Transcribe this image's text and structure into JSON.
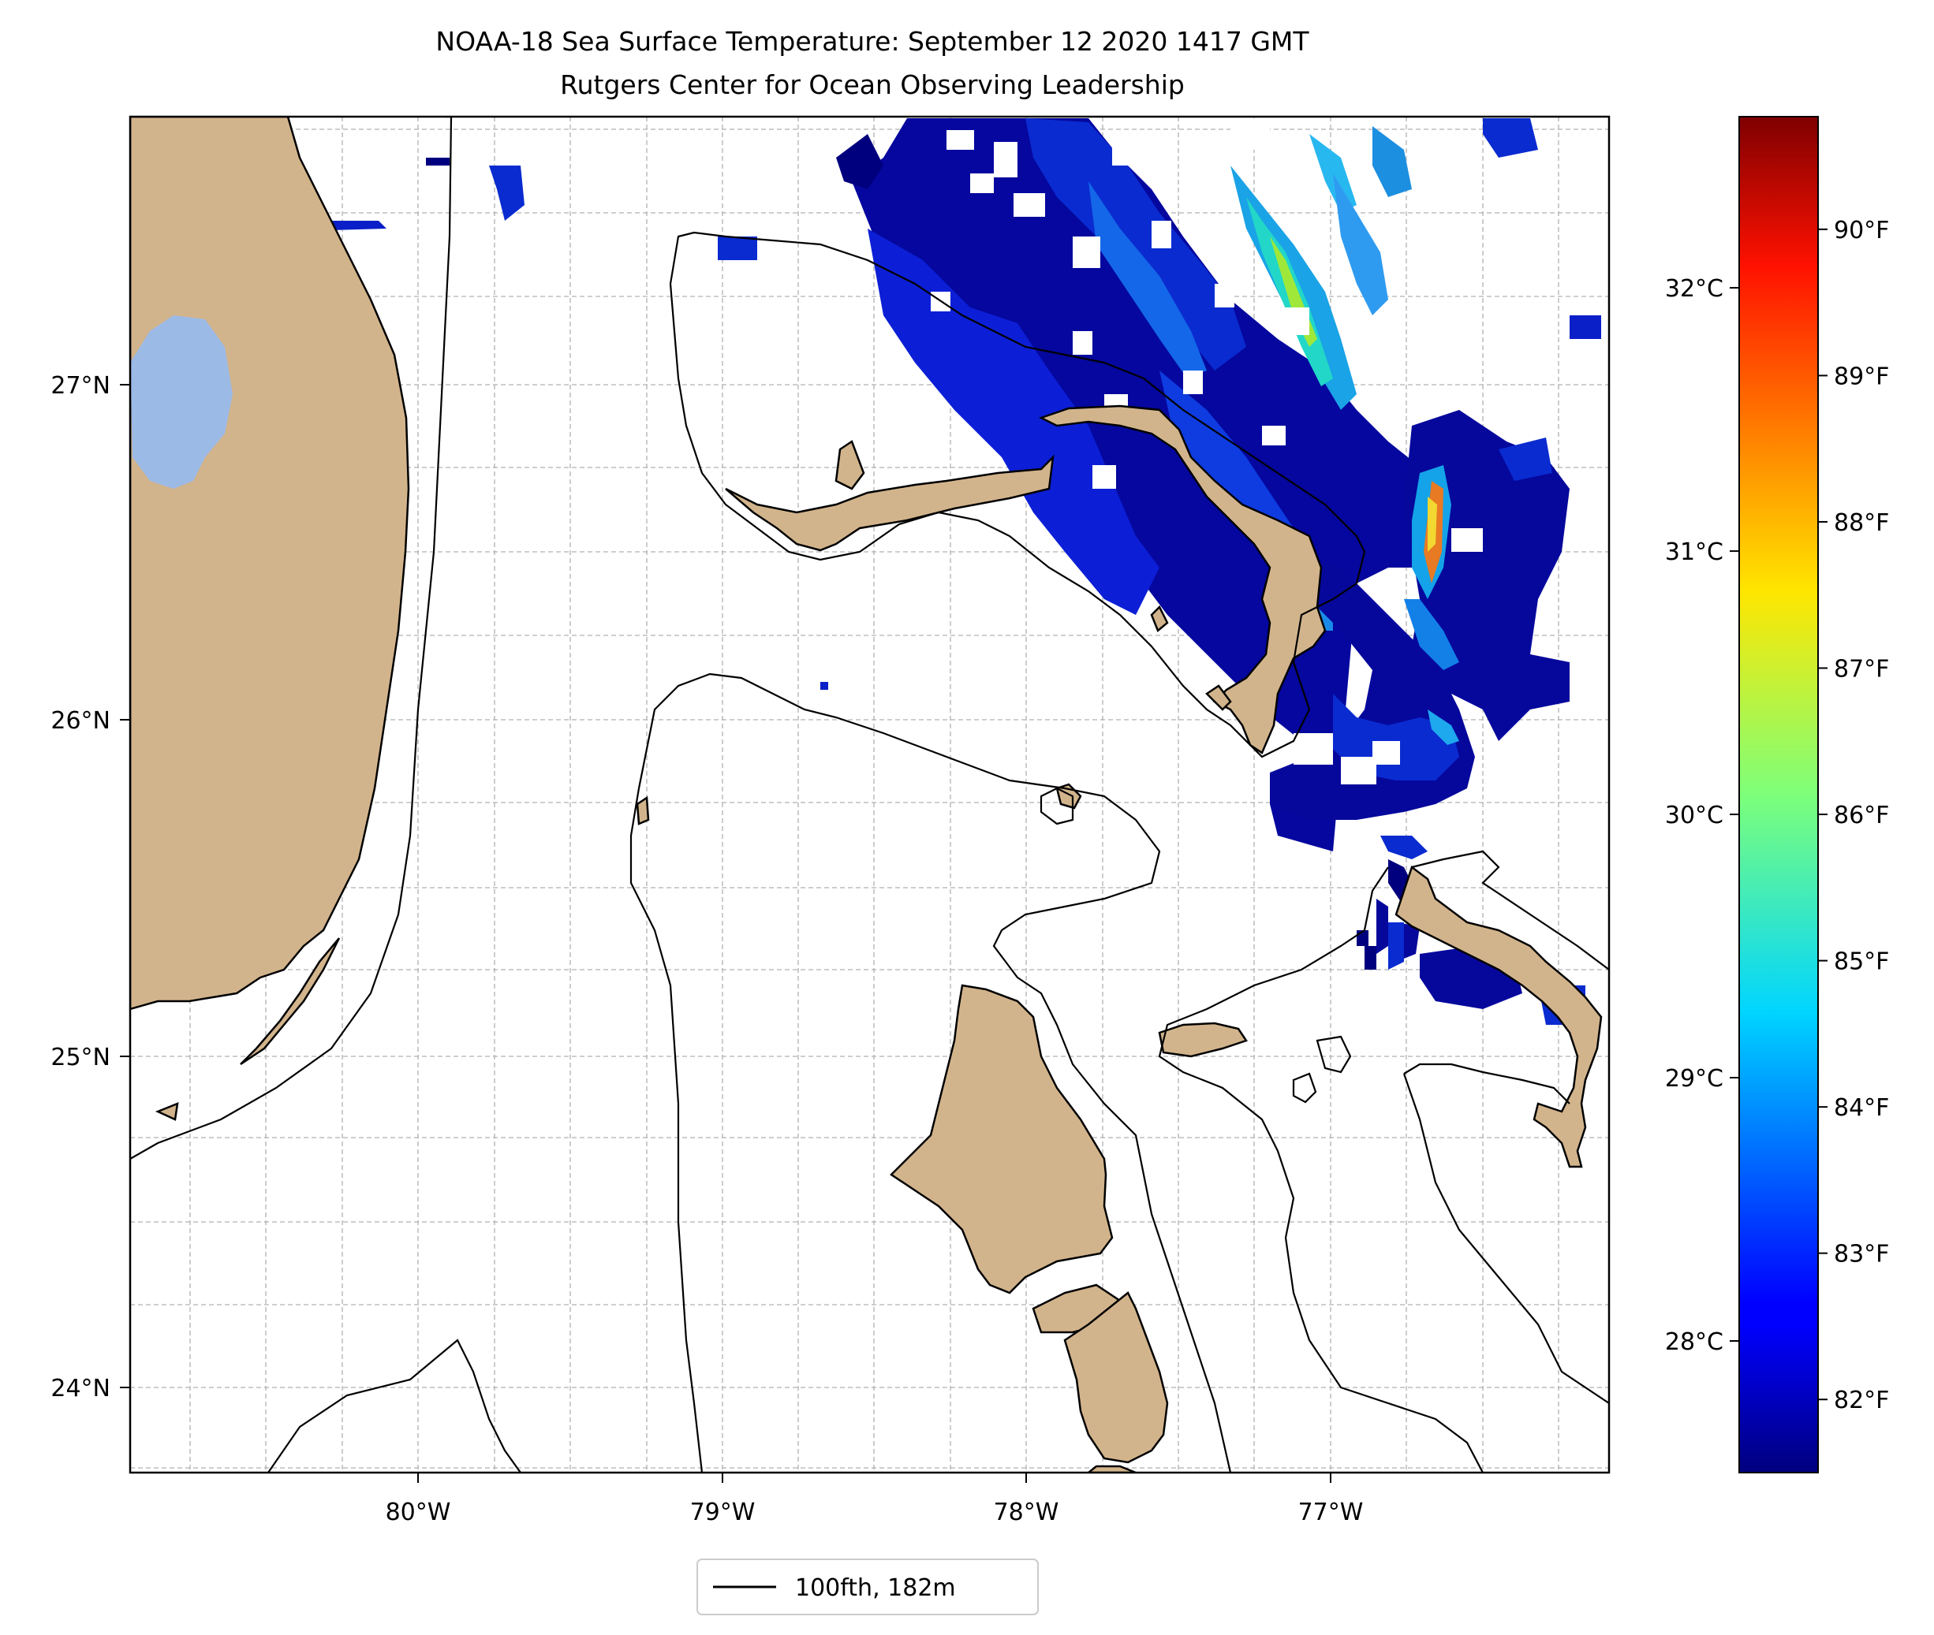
{
  "title": {
    "line1": "NOAA-18 Sea Surface Temperature: September 12 2020 1417 GMT",
    "line2": "Rutgers Center for Ocean Observing Leadership"
  },
  "map": {
    "lat_ticks": [
      "27°N",
      "26°N",
      "25°N",
      "24°N"
    ],
    "lon_ticks": [
      "80°W",
      "79°W",
      "78°W",
      "77°W"
    ],
    "extent": {
      "lon_min": -80.96,
      "lon_max": -76.08,
      "lat_min": 23.73,
      "lat_max": 27.8
    },
    "gridlines": true,
    "land_color": "#d2b48c",
    "lake_color": "#9cbae6"
  },
  "colorbar": {
    "colormap": "jet",
    "celsius_ticks": [
      "32°C",
      "31°C",
      "30°C",
      "29°C",
      "28°C"
    ],
    "fahrenheit_ticks": [
      "90°F",
      "89°F",
      "88°F",
      "87°F",
      "86°F",
      "85°F",
      "84°F",
      "83°F",
      "82°F"
    ],
    "min_c": 27.5,
    "max_c": 32.65
  },
  "legend": {
    "label": "100fth, 182m",
    "position": "lower-center"
  }
}
